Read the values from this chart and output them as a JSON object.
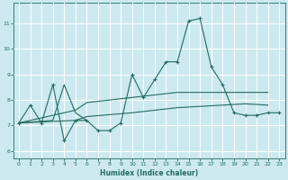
{
  "xlabel": "Humidex (Indice chaleur)",
  "x": [
    0,
    1,
    2,
    3,
    4,
    5,
    6,
    7,
    8,
    9,
    10,
    11,
    12,
    13,
    14,
    15,
    16,
    17,
    18,
    19,
    20,
    21,
    22,
    23
  ],
  "line_main": [
    7.1,
    7.8,
    7.1,
    8.6,
    6.4,
    7.2,
    7.2,
    6.8,
    6.8,
    7.1,
    9.0,
    8.1,
    8.8,
    9.5,
    9.5,
    11.1,
    11.2,
    9.3,
    8.6,
    7.5,
    7.4,
    7.4,
    7.5,
    7.5
  ],
  "line_upper_x": [
    0,
    5,
    6,
    10,
    12,
    14,
    16,
    18,
    20,
    22
  ],
  "line_upper_y": [
    7.1,
    7.6,
    7.9,
    8.1,
    8.2,
    8.3,
    8.3,
    8.3,
    8.3,
    8.3
  ],
  "line_lower_x": [
    0,
    5,
    6,
    10,
    12,
    14,
    16,
    18,
    20,
    22
  ],
  "line_lower_y": [
    7.1,
    7.2,
    7.35,
    7.5,
    7.6,
    7.7,
    7.75,
    7.8,
    7.85,
    7.8
  ],
  "line_short_x": [
    0,
    3,
    4,
    5,
    6
  ],
  "line_short_y": [
    7.1,
    7.2,
    8.6,
    7.5,
    7.2
  ],
  "background_color": "#cce9f0",
  "line_color": "#236b5e",
  "grid_color": "#ffffff",
  "ylim": [
    5.7,
    11.8
  ],
  "yticks": [
    6,
    7,
    8,
    9,
    10,
    11
  ],
  "xticks": [
    0,
    1,
    2,
    3,
    4,
    5,
    6,
    7,
    8,
    9,
    10,
    11,
    12,
    13,
    14,
    15,
    16,
    17,
    18,
    19,
    20,
    21,
    22,
    23
  ]
}
